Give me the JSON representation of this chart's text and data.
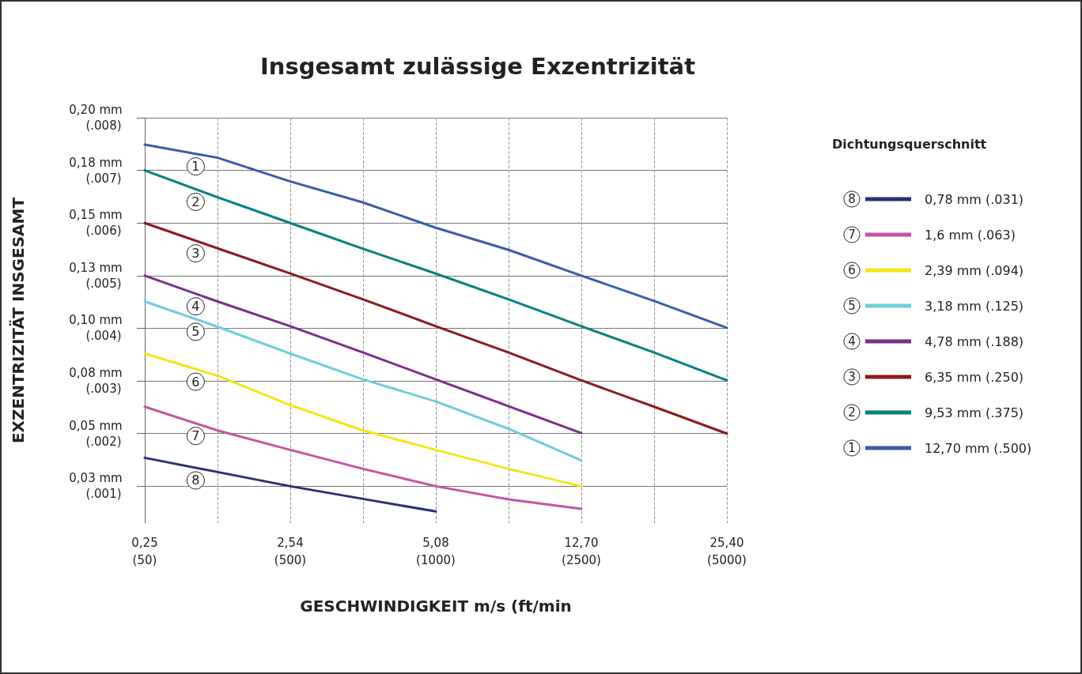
{
  "chart_data": {
    "type": "line",
    "title": "Insgesamt zulässige Exzentrizität",
    "xlabel": "GESCHWINDIGKEIT m/s (ft/min",
    "ylabel": "EXZENTRIZITÄT INSGESAMT",
    "legend_title": "Dichtungsquerschnitt",
    "categories": [
      "0,25\n(50)",
      null,
      "2,54\n(500)",
      null,
      "5,08\n(1000)",
      null,
      "12,70\n(2500)",
      null,
      "25,40\n(5000)"
    ],
    "ylim": [
      0.00762,
      0.2032
    ],
    "yticks": [
      {
        "value": 0.0254,
        "label": "0,03 mm"
      },
      {
        "value": 0.0508,
        "label": "0,05 mm"
      },
      {
        "value": 0.0762,
        "label": "0,08 mm"
      },
      {
        "value": 0.1016,
        "label": "0,10 mm"
      },
      {
        "value": 0.127,
        "label": "0,13 mm"
      },
      {
        "value": 0.1524,
        "label": "0,15 mm"
      },
      {
        "value": 0.1778,
        "label": "0,18 mm"
      },
      {
        "value": 0.2032,
        "label": "0,20 mm"
      }
    ],
    "y2lim": [
      0.0003,
      0.008
    ],
    "y2ticks": [
      {
        "value": 0.001,
        "label": "(.001)"
      },
      {
        "value": 0.002,
        "label": "(.002)"
      },
      {
        "value": 0.003,
        "label": "(.003)"
      },
      {
        "value": 0.004,
        "label": "(.004)"
      },
      {
        "value": 0.005,
        "label": "(.005)"
      },
      {
        "value": 0.006,
        "label": "(.006)"
      },
      {
        "value": 0.007,
        "label": "(.007)"
      },
      {
        "value": 0.008,
        "label": "(.008)"
      }
    ],
    "grid": true,
    "legend": "right",
    "marker": "none",
    "line_style": "solid",
    "series": [
      {
        "name": "12,70 mm (.500)",
        "color": "#3a5bab",
        "axis": "y2",
        "values": [
          0.00749,
          0.00724,
          0.00679,
          0.00639,
          0.00591,
          0.00549,
          0.005,
          0.00452,
          0.00401
        ]
      },
      {
        "name": "9,53 mm (.375)",
        "color": "#008080",
        "axis": "y2",
        "values": [
          0.007,
          0.00649,
          0.006,
          0.00551,
          0.00504,
          0.00455,
          0.00404,
          0.00354,
          0.00301
        ]
      },
      {
        "name": "6,35 mm (.250)",
        "color": "#8b1a1a",
        "axis": "y2",
        "values": [
          0.006,
          0.00552,
          0.00504,
          0.00455,
          0.00404,
          0.00354,
          0.00301,
          0.00251,
          0.002
        ]
      },
      {
        "name": "4,78 mm (.188)",
        "color": "#7b2d8b",
        "axis": "y2",
        "values": [
          0.005,
          0.00451,
          0.00404,
          0.00354,
          0.00303,
          0.00252,
          0.00201,
          null,
          null
        ]
      },
      {
        "name": "3,18 mm (.125)",
        "color": "#6ccfdc",
        "axis": "y2",
        "values": [
          0.00451,
          0.00403,
          0.00352,
          0.00303,
          0.00261,
          0.00209,
          0.00149,
          null,
          null
        ]
      },
      {
        "name": "2,39 mm (.094)",
        "color": "#f5e614",
        "axis": "y2",
        "values": [
          0.00352,
          0.0031,
          0.00254,
          0.00206,
          0.00169,
          0.00133,
          0.001,
          null,
          null
        ]
      },
      {
        "name": "1,6 mm (.063)",
        "color": "#c554a5",
        "axis": "y2",
        "values": [
          0.00251,
          0.00206,
          0.00169,
          0.00133,
          0.001,
          0.00075,
          0.00057,
          null,
          null
        ]
      },
      {
        "name": "0,78 mm (.031)",
        "color": "#2a2f75",
        "axis": "y2",
        "values": [
          0.00154,
          0.00127,
          0.001,
          0.00076,
          0.00052,
          null,
          null,
          null,
          null
        ]
      }
    ],
    "annotations": [
      "1",
      "2",
      "3",
      "4",
      "5",
      "6",
      "7",
      "8"
    ]
  }
}
